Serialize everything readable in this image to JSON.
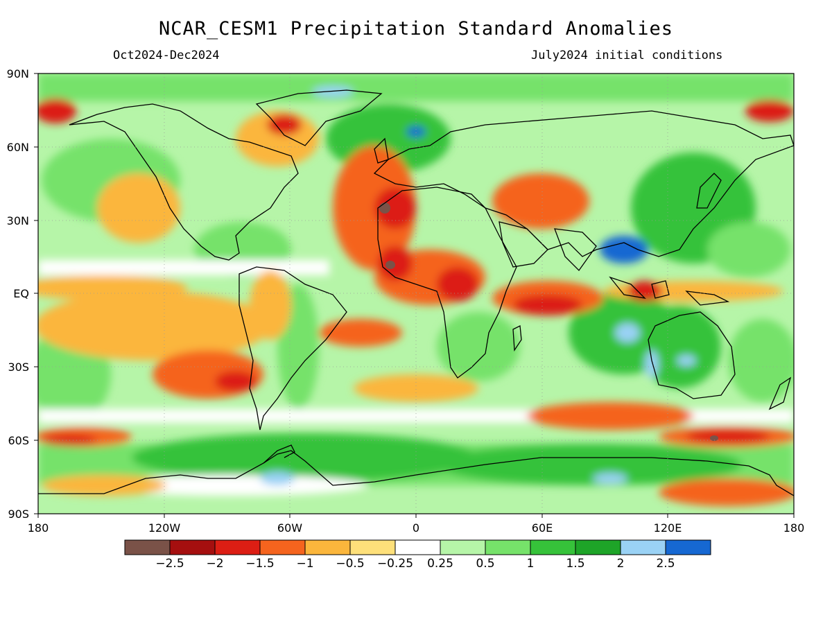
{
  "header": {
    "title": "NCAR_CESM1 Precipitation Standard Anomalies",
    "period": "Oct2024-Dec2024",
    "init": "July2024 initial conditions"
  },
  "map": {
    "lat_labels": [
      "90N",
      "60N",
      "30N",
      "EQ",
      "30S",
      "60S",
      "90S"
    ],
    "lon_labels": [
      "180",
      "120W",
      "60W",
      "0",
      "60E",
      "120E",
      "180"
    ]
  },
  "colorbar": {
    "colors": [
      "#7a5248",
      "#a50f0f",
      "#dc1e14",
      "#f5641e",
      "#fbb63c",
      "#fee07a",
      "#ffffff",
      "#b6f5a8",
      "#76e26a",
      "#36c23a",
      "#1ea428",
      "#9ad2f5",
      "#1668d2"
    ],
    "labels": [
      "−2.5",
      "−2",
      "−1.5",
      "−1",
      "−0.5",
      "−0.25",
      "0.25",
      "0.5",
      "1",
      "1.5",
      "2",
      "2.5"
    ]
  }
}
